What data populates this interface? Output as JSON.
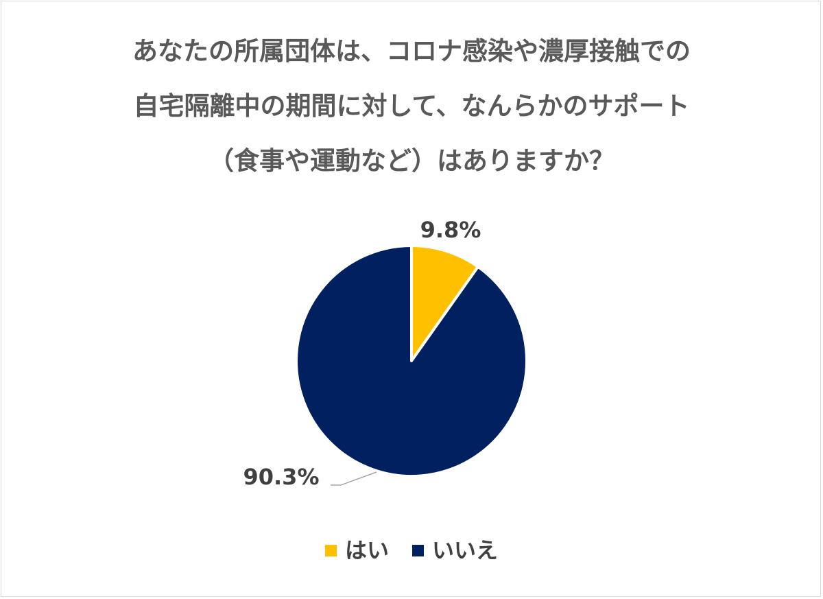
{
  "chart_data": {
    "type": "pie",
    "title_lines": [
      "あなたの所属団体は、コロナ感染や濃厚接触での",
      "自宅隔離中の期間に対して、なんらかのサポート",
      "（食事や運動など）はありますか？"
    ],
    "slices": [
      {
        "label": "はい",
        "value": 9.8,
        "display": "9.8%",
        "color": "#FFC000"
      },
      {
        "label": "いいえ",
        "value": 90.3,
        "display": "90.3%",
        "color": "#002060"
      }
    ],
    "legend_position": "bottom",
    "data_labels": "outside"
  }
}
